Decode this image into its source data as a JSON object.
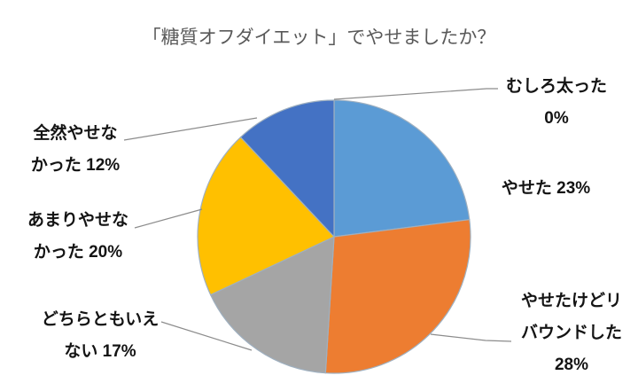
{
  "chart_data": {
    "type": "pie",
    "title": "「糖質オフダイエット」でやせましたか？",
    "total": 100,
    "legend": "none",
    "direction": "clockwise",
    "start_angle_deg": 0,
    "slices": [
      {
        "id": "lost-weight",
        "label": "やせた",
        "value": 23,
        "color": "#5B9BD5",
        "label_lines": [
          "やせた 23%"
        ]
      },
      {
        "id": "rebounded",
        "label": "やせたけどリバウンドした",
        "value": 28,
        "color": "#ED7D31",
        "label_lines": [
          "やせたけどリ",
          "バウンドした",
          "28%"
        ]
      },
      {
        "id": "neither",
        "label": "どちらともいえない",
        "value": 17,
        "color": "#A5A5A5",
        "label_lines": [
          "どちらともいえ",
          "ない 17%"
        ]
      },
      {
        "id": "not-much",
        "label": "あまりやせなかった",
        "value": 20,
        "color": "#FFC000",
        "label_lines": [
          "あまりやせな",
          "かった 20%"
        ]
      },
      {
        "id": "not-at-all",
        "label": "全然やせなかった",
        "value": 12,
        "color": "#4472C4",
        "label_lines": [
          "全然やせな",
          "かった 12%"
        ]
      },
      {
        "id": "gained-weight",
        "label": "むしろ太った",
        "value": 0,
        "color": null,
        "label_lines": [
          "むしろ太った",
          "0%"
        ]
      }
    ],
    "styles": {
      "slice_border_color": "#9FB0C0",
      "leader_line_color": "#8c8c8c",
      "title_color": "#595959",
      "label_color": "#141414"
    }
  }
}
